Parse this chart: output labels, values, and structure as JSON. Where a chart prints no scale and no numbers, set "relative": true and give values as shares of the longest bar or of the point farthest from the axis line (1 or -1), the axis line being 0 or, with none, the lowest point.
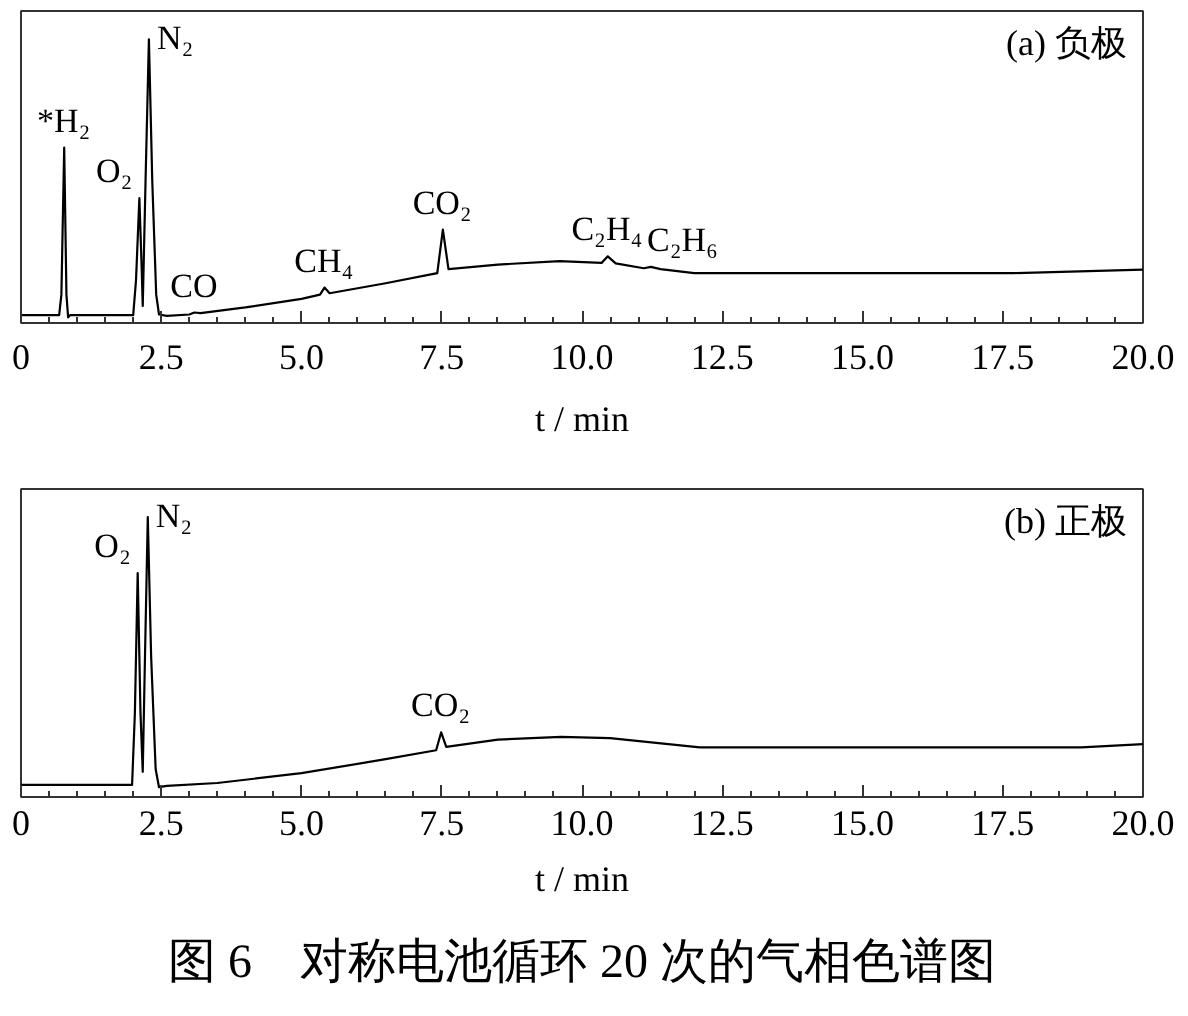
{
  "chart_data": [
    {
      "type": "line",
      "title": "(a) 负极",
      "xlabel": "t / min",
      "relative": true,
      "tick_labels": "x",
      "xlim": [
        0,
        20
      ],
      "xticks": [
        0,
        {
          "value": 0.5,
          "label": null
        },
        {
          "value": 1,
          "label": null
        },
        {
          "value": 1.5,
          "label": null
        },
        {
          "value": 2,
          "label": null
        },
        2.5,
        {
          "value": 3,
          "label": null
        },
        {
          "value": 3.5,
          "label": null
        },
        {
          "value": 4,
          "label": null
        },
        {
          "value": 4.5,
          "label": null
        },
        {
          "value": 5,
          "label": "5.0"
        },
        {
          "value": 5.5,
          "label": null
        },
        {
          "value": 6,
          "label": null
        },
        {
          "value": 6.5,
          "label": null
        },
        {
          "value": 7,
          "label": null
        },
        7.5,
        {
          "value": 8,
          "label": null
        },
        {
          "value": 8.5,
          "label": null
        },
        {
          "value": 9,
          "label": null
        },
        {
          "value": 9.5,
          "label": null
        },
        {
          "value": 10,
          "label": "10.0"
        },
        {
          "value": 10.5,
          "label": null
        },
        {
          "value": 11,
          "label": null
        },
        {
          "value": 11.5,
          "label": null
        },
        {
          "value": 12,
          "label": null
        },
        12.5,
        {
          "value": 13,
          "label": null
        },
        {
          "value": 13.5,
          "label": null
        },
        {
          "value": 14,
          "label": null
        },
        {
          "value": 14.5,
          "label": null
        },
        {
          "value": 15,
          "label": "15.0"
        },
        {
          "value": 15.5,
          "label": null
        },
        {
          "value": 16,
          "label": null
        },
        {
          "value": 16.5,
          "label": null
        },
        {
          "value": 17,
          "label": null
        },
        17.5,
        {
          "value": 18,
          "label": null
        },
        {
          "value": 18.5,
          "label": null
        },
        {
          "value": 19,
          "label": null
        },
        {
          "value": 19.5,
          "label": null
        },
        {
          "value": 20,
          "label": "20.0"
        }
      ],
      "x": [
        0,
        0.68,
        0.72,
        0.77,
        0.81,
        0.84,
        0.88,
        2.0,
        2.05,
        2.11,
        2.15,
        2.17,
        2.22,
        2.28,
        2.34,
        2.41,
        2.46,
        2.6,
        3.0,
        3.09,
        3.2,
        4.0,
        5.0,
        5.33,
        5.41,
        5.5,
        6.5,
        7.42,
        7.52,
        7.62,
        8.5,
        9.6,
        10.35,
        10.46,
        10.6,
        11.1,
        11.23,
        11.4,
        12.0,
        17.7,
        20.0
      ],
      "series": [
        {
          "color": "#000000",
          "values": [
            0.028,
            0.028,
            0.1,
            0.618,
            0.1,
            0.02,
            0.028,
            0.028,
            0.15,
            0.44,
            0.2,
            0.06,
            0.5,
            1.0,
            0.5,
            0.1,
            0.03,
            0.025,
            0.03,
            0.037,
            0.035,
            0.055,
            0.085,
            0.1,
            0.125,
            0.105,
            0.14,
            0.176,
            0.329,
            0.19,
            0.206,
            0.218,
            0.212,
            0.235,
            0.21,
            0.193,
            0.198,
            0.19,
            0.176,
            0.176,
            0.188
          ]
        }
      ],
      "annotations": [
        {
          "text": "*H₂",
          "x": 0.77,
          "y": 0.618
        },
        {
          "text": "O₂",
          "x": 2.11,
          "y": 0.44
        },
        {
          "text": "N₂",
          "x": 2.28,
          "y": 1.0
        },
        {
          "text": "CO",
          "x": 3.09,
          "y": 0.037
        },
        {
          "text": "CH₄",
          "x": 5.41,
          "y": 0.125
        },
        {
          "text": "CO₂",
          "x": 7.52,
          "y": 0.329
        },
        {
          "text": "C₂H₄",
          "x": 10.46,
          "y": 0.235
        },
        {
          "text": "C₂H₆",
          "x": 11.23,
          "y": 0.198
        }
      ]
    },
    {
      "type": "line",
      "title": "(b) 正极",
      "xlabel": "t / min",
      "relative": true,
      "tick_labels": "x",
      "xlim": [
        0,
        20
      ],
      "xticks": [
        0,
        {
          "value": 0.5,
          "label": null
        },
        {
          "value": 1,
          "label": null
        },
        {
          "value": 1.5,
          "label": null
        },
        {
          "value": 2,
          "label": null
        },
        2.5,
        {
          "value": 3,
          "label": null
        },
        {
          "value": 3.5,
          "label": null
        },
        {
          "value": 4,
          "label": null
        },
        {
          "value": 4.5,
          "label": null
        },
        {
          "value": 5,
          "label": "5.0"
        },
        {
          "value": 5.5,
          "label": null
        },
        {
          "value": 6,
          "label": null
        },
        {
          "value": 6.5,
          "label": null
        },
        {
          "value": 7,
          "label": null
        },
        7.5,
        {
          "value": 8,
          "label": null
        },
        {
          "value": 8.5,
          "label": null
        },
        {
          "value": 9,
          "label": null
        },
        {
          "value": 9.5,
          "label": null
        },
        {
          "value": 10,
          "label": "10.0"
        },
        {
          "value": 10.5,
          "label": null
        },
        {
          "value": 11,
          "label": null
        },
        {
          "value": 11.5,
          "label": null
        },
        {
          "value": 12,
          "label": null
        },
        12.5,
        {
          "value": 13,
          "label": null
        },
        {
          "value": 13.5,
          "label": null
        },
        {
          "value": 14,
          "label": null
        },
        {
          "value": 14.5,
          "label": null
        },
        {
          "value": 15,
          "label": "15.0"
        },
        {
          "value": 15.5,
          "label": null
        },
        {
          "value": 16,
          "label": null
        },
        {
          "value": 16.5,
          "label": null
        },
        {
          "value": 17,
          "label": null
        },
        17.5,
        {
          "value": 18,
          "label": null
        },
        {
          "value": 18.5,
          "label": null
        },
        {
          "value": 19,
          "label": null
        },
        {
          "value": 19.5,
          "label": null
        },
        {
          "value": 20,
          "label": "20.0"
        }
      ],
      "x": [
        0,
        1.98,
        2.03,
        2.08,
        2.13,
        2.17,
        2.21,
        2.26,
        2.32,
        2.4,
        2.46,
        2.6,
        3.5,
        5.0,
        6.5,
        7.4,
        7.49,
        7.58,
        8.5,
        9.63,
        10.5,
        12.1,
        18.9,
        20.0
      ],
      "series": [
        {
          "color": "#000000",
          "values": [
            0.043,
            0.043,
            0.3,
            0.8,
            0.3,
            0.09,
            0.5,
            1.0,
            0.5,
            0.1,
            0.035,
            0.04,
            0.05,
            0.085,
            0.135,
            0.167,
            0.231,
            0.179,
            0.205,
            0.215,
            0.21,
            0.177,
            0.177,
            0.189
          ]
        }
      ],
      "annotations": [
        {
          "text": "O₂",
          "x": 2.08,
          "y": 0.8
        },
        {
          "text": "N₂",
          "x": 2.26,
          "y": 1.0
        },
        {
          "text": "CO₂",
          "x": 7.49,
          "y": 0.231
        },
        "图 6　对称电池循环 20 次的气相色谱图"
      ]
    }
  ]
}
